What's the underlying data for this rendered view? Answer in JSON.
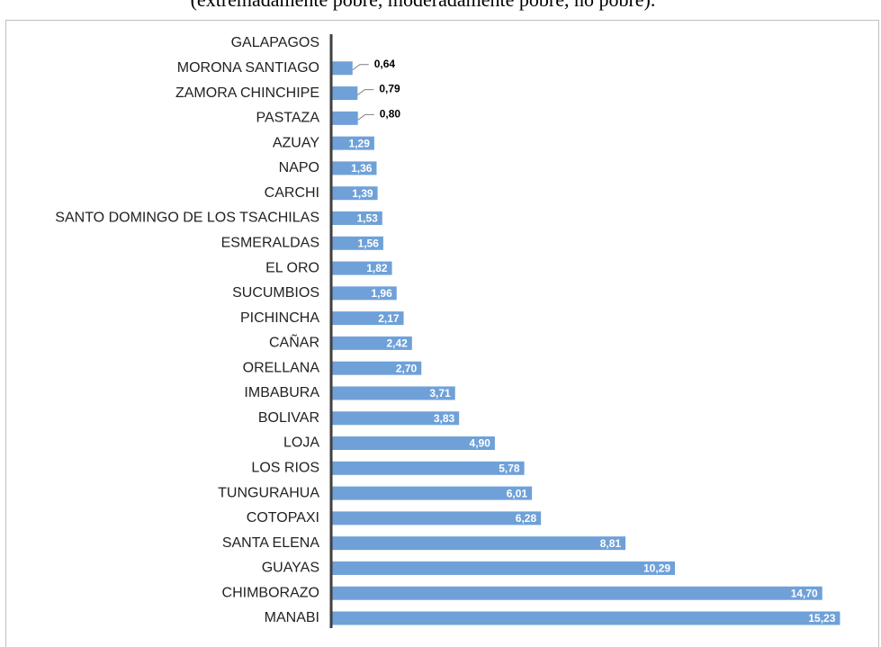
{
  "chart_data": {
    "type": "bar",
    "orientation": "horizontal",
    "subtitle": "(extremadamente pobre, moderadamente pobre, no pobre).",
    "categories": [
      "GALAPAGOS",
      "MORONA SANTIAGO",
      "ZAMORA CHINCHIPE",
      "PASTAZA",
      "AZUAY",
      "NAPO",
      "CARCHI",
      "SANTO DOMINGO DE LOS TSACHILAS",
      "ESMERALDAS",
      "EL ORO",
      "SUCUMBIOS",
      "PICHINCHA",
      "CAÑAR",
      "ORELLANA",
      "IMBABURA",
      "BOLIVAR",
      "LOJA",
      "LOS RIOS",
      "TUNGURAHUA",
      "COTOPAXI",
      "SANTA ELENA",
      "GUAYAS",
      "CHIMBORAZO",
      "MANABI"
    ],
    "values": [
      null,
      0.64,
      0.79,
      0.8,
      1.29,
      1.36,
      1.39,
      1.53,
      1.56,
      1.82,
      1.96,
      2.17,
      2.42,
      2.7,
      3.71,
      3.83,
      4.9,
      5.78,
      6.01,
      6.28,
      8.81,
      10.29,
      14.7,
      15.23
    ],
    "value_labels": [
      null,
      "0,64",
      "0,79",
      "0,80",
      "1,29",
      "1,36",
      "1,39",
      "1,53",
      "1,56",
      "1,82",
      "1,96",
      "2,17",
      "2,42",
      "2,70",
      "3,71",
      "3,83",
      "4,90",
      "5,78",
      "6,01",
      "6,28",
      "8,81",
      "10,29",
      "14,70",
      "15,23"
    ],
    "color": "#6fa1d8",
    "xlim": [
      0,
      16
    ]
  }
}
